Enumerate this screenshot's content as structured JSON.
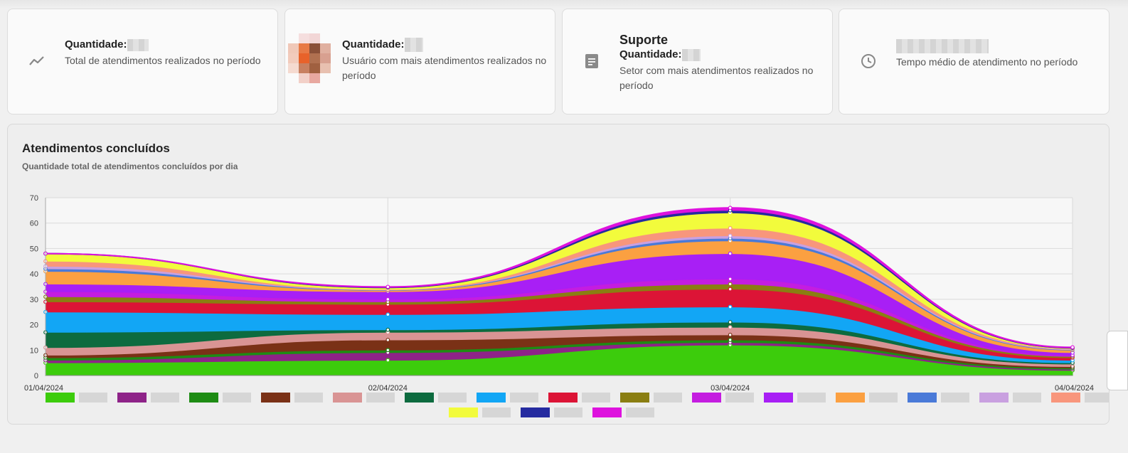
{
  "cards": [
    {
      "quantity_label": "Quantidade:",
      "description": "Total de atendimentos realizados no período",
      "icon": "trend-line-icon"
    },
    {
      "quantity_label": "Quantidade:",
      "description": "Usuário com mais atendimentos realizados no período",
      "icon": "user-avatar"
    },
    {
      "heading": "Suporte",
      "quantity_label": "Quantidade:",
      "description": "Setor com mais atendimentos realizados no período",
      "icon": "document-icon"
    },
    {
      "description": "Tempo médio de atendimento no período",
      "icon": "clock-icon"
    }
  ],
  "panel": {
    "title": "Atendimentos concluídos",
    "subtitle": "Quantidade total de atendimentos concluídos por dia"
  },
  "chart_data": {
    "type": "area",
    "stacked": true,
    "x": [
      "01/04/2024",
      "02/04/2024",
      "03/04/2024",
      "04/04/2024"
    ],
    "ylim": [
      0,
      70
    ],
    "yticks": [
      0,
      10,
      20,
      30,
      40,
      50,
      60,
      70
    ],
    "grid": true,
    "legend_placement": "bottom",
    "series": [
      {
        "color": "#3ccc0c",
        "values": [
          5,
          6,
          12,
          2
        ]
      },
      {
        "color": "#8e2388",
        "values": [
          1,
          3,
          1,
          0.5
        ]
      },
      {
        "color": "#1e8c14",
        "values": [
          1,
          1,
          1,
          0.5
        ]
      },
      {
        "color": "#7a3116",
        "values": [
          1,
          4,
          2,
          0.5
        ]
      },
      {
        "color": "#d99494",
        "values": [
          3,
          3,
          3,
          1
        ]
      },
      {
        "color": "#0d6b3f",
        "values": [
          6,
          1,
          2,
          0.5
        ]
      },
      {
        "color": "#12a6f5",
        "values": [
          8,
          6,
          6,
          1
        ]
      },
      {
        "color": "#dc1436",
        "values": [
          4,
          4,
          7,
          1
        ]
      },
      {
        "color": "#8a7e12",
        "values": [
          2,
          1,
          2,
          0.5
        ]
      },
      {
        "color": "#c41de0",
        "values": [
          2,
          1,
          2,
          0.5
        ]
      },
      {
        "color": "#a81ff5",
        "values": [
          3,
          3,
          10,
          1
        ]
      },
      {
        "color": "#fba041",
        "values": [
          5,
          0.5,
          5,
          1
        ]
      },
      {
        "color": "#4a7ad8",
        "values": [
          1,
          0.2,
          1,
          0.2
        ]
      },
      {
        "color": "#c9a0e0",
        "values": [
          1,
          0.1,
          1,
          0.2
        ]
      },
      {
        "color": "#f8967c",
        "values": [
          2,
          0.1,
          3,
          0.2
        ]
      },
      {
        "color": "#f2fb3c",
        "values": [
          3,
          0.6,
          6,
          0.2
        ]
      },
      {
        "color": "#252ba0",
        "values": [
          0,
          0.2,
          1,
          0.1
        ]
      },
      {
        "color": "#de12de",
        "values": [
          0,
          0.2,
          1,
          0.2
        ]
      }
    ]
  }
}
